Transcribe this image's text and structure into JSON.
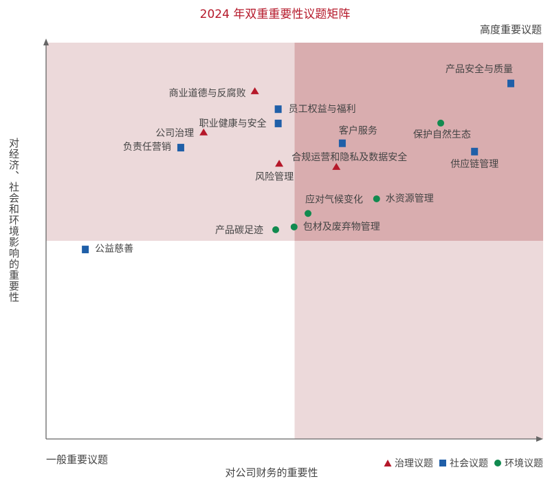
{
  "chart_data": {
    "type": "scatter",
    "title": "2024 年双重重要性议题矩阵",
    "xlabel": "对公司财务的重要性",
    "ylabel": "对经济、社会和环境影响的重要性",
    "corner_labels": {
      "high": "高度重要议题",
      "low": "一般重要议题"
    },
    "xlim": [
      0,
      100
    ],
    "ylim": [
      0,
      100
    ],
    "quadrant_split": {
      "x": 50,
      "y": 50
    },
    "grid": false,
    "legend_placement": "bottom-right",
    "colors": {
      "quadrant_light": "#ecd9da",
      "quadrant_dark": "#d9adaf",
      "title": "#b5182a",
      "governance": "#b5182a",
      "social": "#1f5fa8",
      "environment": "#118a4f"
    },
    "series": [
      {
        "name": "治理议题",
        "key": "governance",
        "marker": "triangle",
        "points": [
          {
            "label": "商业道德与反腐败",
            "x": 42.0,
            "y": 87.7
          },
          {
            "label": "公司治理",
            "x": 31.7,
            "y": 77.3
          },
          {
            "label": "风险管理",
            "x": 46.9,
            "y": 69.4
          },
          {
            "label": "合规运营和隐私及数据安全",
            "x": 58.4,
            "y": 68.6
          }
        ]
      },
      {
        "name": "社会议题",
        "key": "social",
        "marker": "square",
        "points": [
          {
            "label": "员工权益与福利",
            "x": 46.7,
            "y": 83.3
          },
          {
            "label": "职业健康与安全",
            "x": 46.7,
            "y": 79.7
          },
          {
            "label": "负责任营销",
            "x": 27.1,
            "y": 73.6
          },
          {
            "label": "客户服务",
            "x": 59.6,
            "y": 74.7
          },
          {
            "label": "产品安全与质量",
            "x": 93.5,
            "y": 89.8
          },
          {
            "label": "供应链管理",
            "x": 86.2,
            "y": 72.6
          },
          {
            "label": "公益慈善",
            "x": 7.9,
            "y": 47.9
          }
        ]
      },
      {
        "name": "环境议题",
        "key": "environment",
        "marker": "circle",
        "points": [
          {
            "label": "保护自然生态",
            "x": 79.4,
            "y": 79.7
          },
          {
            "label": "水资源管理",
            "x": 66.5,
            "y": 60.6
          },
          {
            "label": "应对气候变化",
            "x": 52.7,
            "y": 56.9
          },
          {
            "label": "包材及废弃物管理",
            "x": 49.9,
            "y": 53.5
          },
          {
            "label": "产品碳足迹",
            "x": 46.2,
            "y": 52.8
          }
        ]
      }
    ]
  }
}
